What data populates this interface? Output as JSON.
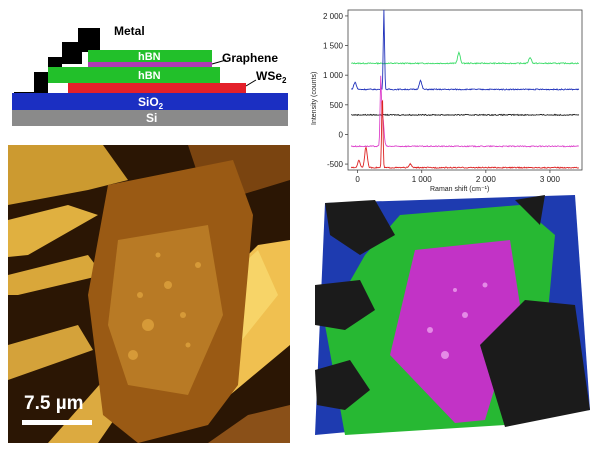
{
  "device_schematic": {
    "labels": {
      "metal": "Metal",
      "graphene": "Graphene",
      "hbn_top": "hBN",
      "hbn_bottom": "hBN",
      "wse2": "WSe",
      "wse2_sub": "2",
      "sio2": "SiO",
      "sio2_sub": "2",
      "si": "Si"
    },
    "colors": {
      "metal": "#000000",
      "hbn": "#22c02a",
      "graphene": "#b13bb5",
      "wse2": "#e4202a",
      "sio2": "#1b2fc2",
      "si": "#8a8a8a"
    }
  },
  "chart_data": {
    "type": "line",
    "title": "",
    "xlabel": "Raman shift (cm⁻¹)",
    "ylabel": "Intensity (counts)",
    "xlim": [
      -150,
      3500
    ],
    "ylim": [
      -600,
      2100
    ],
    "xticks": [
      0,
      1000,
      2000,
      3000
    ],
    "xtick_labels": [
      "0",
      "1 000",
      "2 000",
      "3 000"
    ],
    "yticks": [
      -500,
      0,
      500,
      1000,
      1500,
      2000
    ],
    "ytick_labels": [
      "-500",
      "0",
      "500",
      "1 000",
      "1 500",
      "2 000"
    ],
    "grid": false,
    "series": [
      {
        "color": "#3ddc6a",
        "baseline": 1200,
        "peaks": [
          [
            1580,
            180
          ],
          [
            2690,
            100
          ]
        ]
      },
      {
        "color": "#2233bb",
        "baseline": 760,
        "peaks": [
          [
            -40,
            120
          ],
          [
            410,
            1350
          ],
          [
            980,
            150
          ]
        ]
      },
      {
        "color": "#222222",
        "baseline": 330,
        "peaks": []
      },
      {
        "color": "#dd44cc",
        "baseline": -200,
        "peaks": [
          [
            360,
            1030
          ],
          [
            390,
            500
          ]
        ]
      },
      {
        "color": "#dd2222",
        "baseline": -560,
        "peaks": [
          [
            20,
            120
          ],
          [
            130,
            350
          ],
          [
            385,
            1270
          ],
          [
            820,
            60
          ]
        ]
      }
    ]
  },
  "afm_image": {
    "scale_bar_label": "7.5 µm",
    "colors": {
      "flake_bright": "#e8b94a",
      "flake_mid": "#a06418",
      "background_dark": "#2b1604"
    }
  },
  "raman_map": {
    "colors": {
      "substrate": "#1e3bb0",
      "hbn": "#27b833",
      "graphene": "#c233c6",
      "metal": "#1b1b1b"
    }
  }
}
